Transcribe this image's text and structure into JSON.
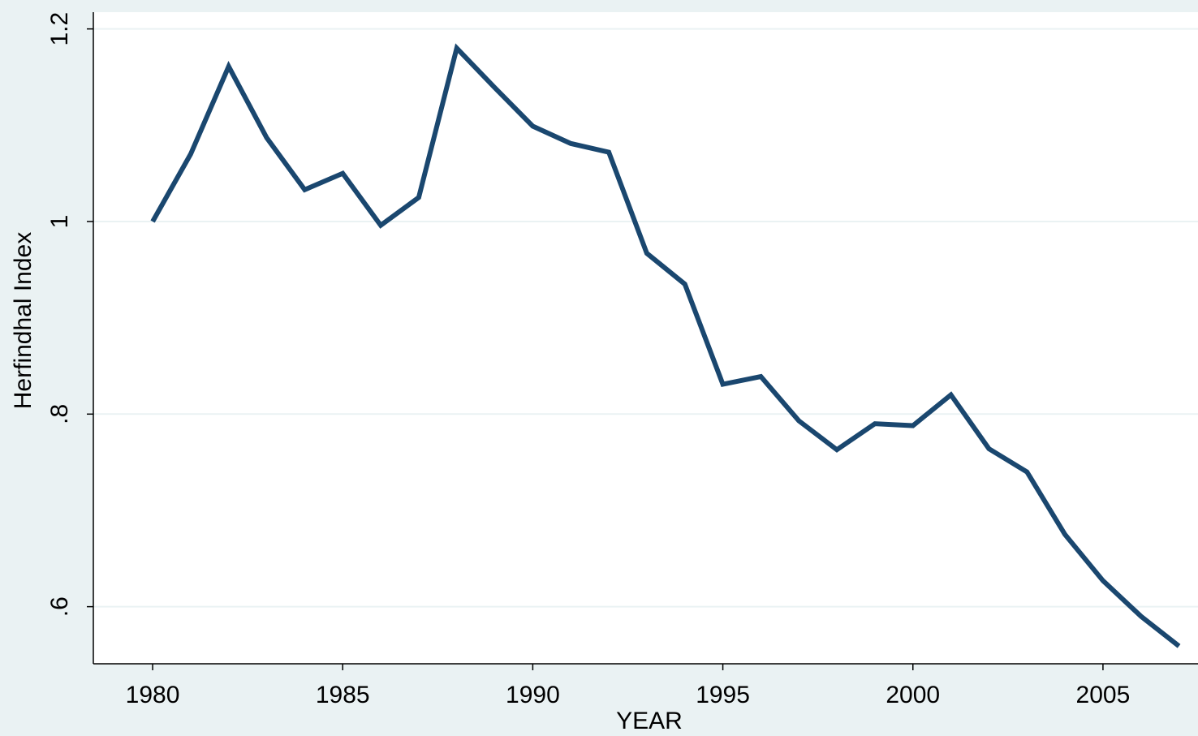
{
  "chart_data": {
    "type": "line",
    "x_label": "YEAR",
    "y_label": "Herfindhal Index",
    "x": [
      1980,
      1981,
      1982,
      1983,
      1984,
      1985,
      1986,
      1987,
      1988,
      1989,
      1990,
      1991,
      1992,
      1993,
      1994,
      1995,
      1996,
      1997,
      1998,
      1999,
      2000,
      2001,
      2002,
      2003,
      2004,
      2005,
      2006,
      2007
    ],
    "values": [
      1.0,
      1.07,
      1.161,
      1.087,
      1.033,
      1.05,
      0.996,
      1.025,
      1.18,
      1.139,
      1.099,
      1.081,
      1.072,
      0.967,
      0.935,
      0.831,
      0.839,
      0.793,
      0.763,
      0.79,
      0.788,
      0.82,
      0.764,
      0.74,
      0.675,
      0.627,
      0.59,
      0.559
    ],
    "color": "#1a476f",
    "xlim": [
      1978.44,
      2007.5
    ],
    "xticks": [
      1980,
      1985,
      1990,
      1995,
      2000,
      2005
    ],
    "ylim": [
      0.5407,
      1.2174
    ],
    "yticks": [
      {
        "value": 0.6,
        "label": ".6"
      },
      {
        "value": 0.8,
        "label": ".8"
      },
      1,
      1.2
    ],
    "grid": true
  }
}
